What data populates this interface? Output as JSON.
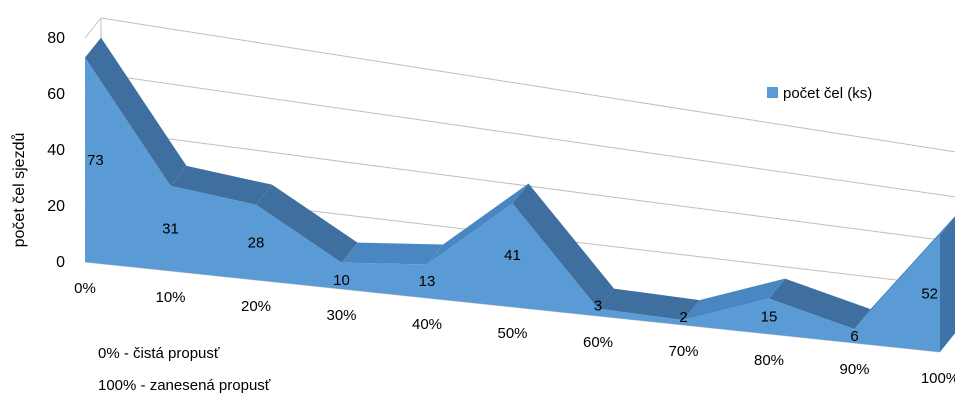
{
  "chart_data": {
    "type": "area",
    "view": "3d",
    "title": "",
    "ylabel": "počet čel sjezdů",
    "xlabel": "",
    "categories": [
      "0%",
      "10%",
      "20%",
      "30%",
      "40%",
      "50%",
      "60%",
      "70%",
      "80%",
      "90%",
      "100%"
    ],
    "series": [
      {
        "name": "počet čel (ks)",
        "values": [
          73,
          31,
          28,
          10,
          13,
          41,
          3,
          2,
          15,
          6,
          52
        ],
        "color": "#5b9bd5"
      }
    ],
    "yticks": [
      "0",
      "20",
      "40",
      "60",
      "80"
    ],
    "ylim": [
      0,
      80
    ],
    "grid": true,
    "legend_position": "right",
    "notes": [
      "0% - čistá propusť",
      "100% - zanesená propusť"
    ]
  }
}
